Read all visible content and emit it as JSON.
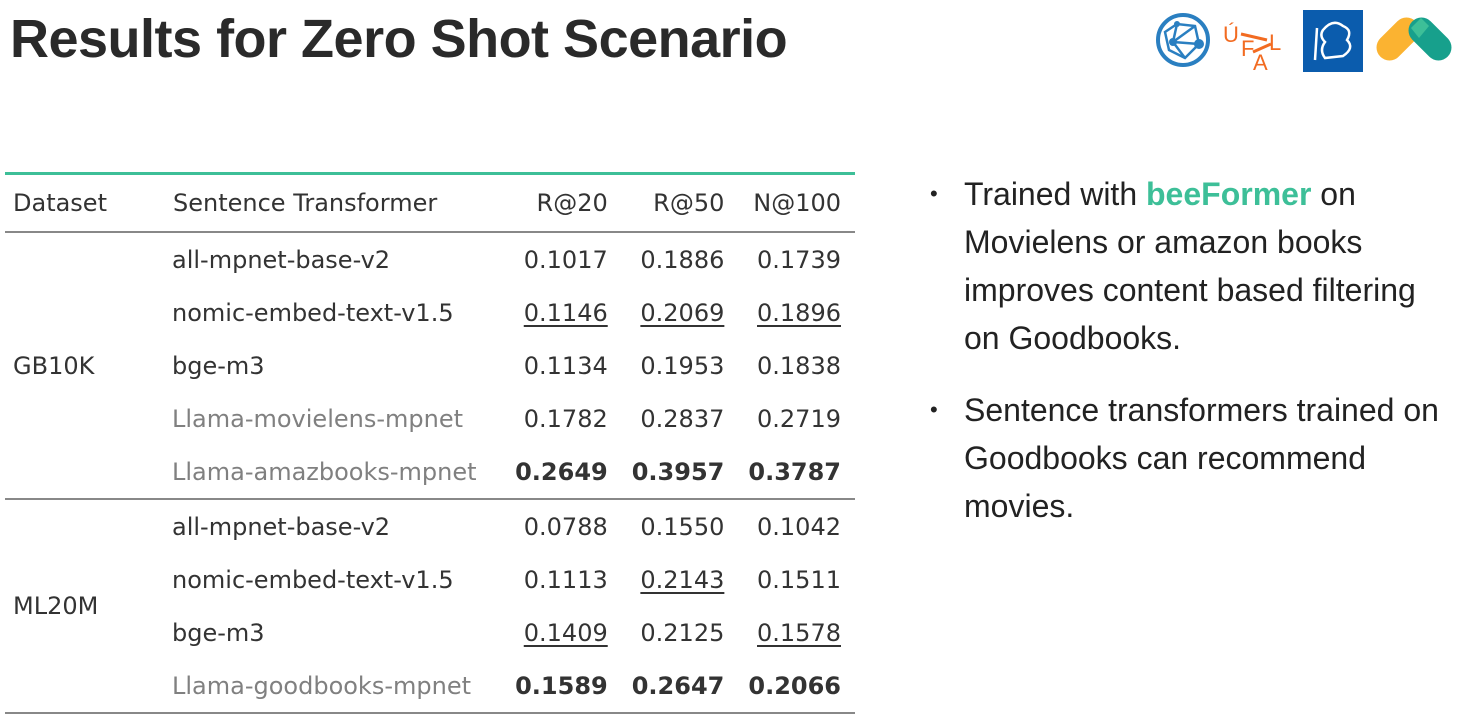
{
  "title": "Results for Zero Shot Scenario",
  "logos": [
    "globe-network-logo",
    "UFAL",
    "CTU-lion-logo",
    "recombee-logo"
  ],
  "colors": {
    "accent": "#3dbf98",
    "ufal": "#f26b21",
    "globe": "#2a7fc1",
    "ctu": "#0b5cad"
  },
  "table": {
    "headers": [
      "Dataset",
      "Sentence Transformer",
      "R@20",
      "R@50",
      "N@100"
    ],
    "groups": [
      {
        "dataset": "GB10K",
        "rows": [
          {
            "model": "all-mpnet-base-v2",
            "llama": false,
            "values": [
              {
                "v": "0.1017"
              },
              {
                "v": "0.1886"
              },
              {
                "v": "0.1739"
              }
            ]
          },
          {
            "model": "nomic-embed-text-v1.5",
            "llama": false,
            "values": [
              {
                "v": "0.1146",
                "u": true
              },
              {
                "v": "0.2069",
                "u": true
              },
              {
                "v": "0.1896",
                "u": true
              }
            ]
          },
          {
            "model": "bge-m3",
            "llama": false,
            "values": [
              {
                "v": "0.1134"
              },
              {
                "v": "0.1953"
              },
              {
                "v": "0.1838"
              }
            ]
          },
          {
            "model": "Llama-movielens-mpnet",
            "llama": true,
            "values": [
              {
                "v": "0.1782"
              },
              {
                "v": "0.2837"
              },
              {
                "v": "0.2719"
              }
            ]
          },
          {
            "model": "Llama-amazbooks-mpnet",
            "llama": true,
            "values": [
              {
                "v": "0.2649",
                "b": true
              },
              {
                "v": "0.3957",
                "b": true
              },
              {
                "v": "0.3787",
                "b": true
              }
            ]
          }
        ]
      },
      {
        "dataset": "ML20M",
        "rows": [
          {
            "model": "all-mpnet-base-v2",
            "llama": false,
            "values": [
              {
                "v": "0.0788"
              },
              {
                "v": "0.1550"
              },
              {
                "v": "0.1042"
              }
            ]
          },
          {
            "model": "nomic-embed-text-v1.5",
            "llama": false,
            "values": [
              {
                "v": "0.1113"
              },
              {
                "v": "0.2143",
                "u": true
              },
              {
                "v": "0.1511"
              }
            ]
          },
          {
            "model": "bge-m3",
            "llama": false,
            "values": [
              {
                "v": "0.1409",
                "u": true
              },
              {
                "v": "0.2125"
              },
              {
                "v": "0.1578",
                "u": true
              }
            ]
          },
          {
            "model": "Llama-goodbooks-mpnet",
            "llama": true,
            "values": [
              {
                "v": "0.1589",
                "b": true
              },
              {
                "v": "0.2647",
                "b": true
              },
              {
                "v": "0.2066",
                "b": true
              }
            ]
          }
        ]
      }
    ]
  },
  "bullets": [
    {
      "pre": "Trained with ",
      "highlight": "beeFormer",
      "post": " on Movielens or amazon books improves content based filtering on Goodbooks."
    },
    {
      "pre": "Sentence transformers trained on Goodbooks can recommend movies.",
      "highlight": "",
      "post": ""
    }
  ]
}
